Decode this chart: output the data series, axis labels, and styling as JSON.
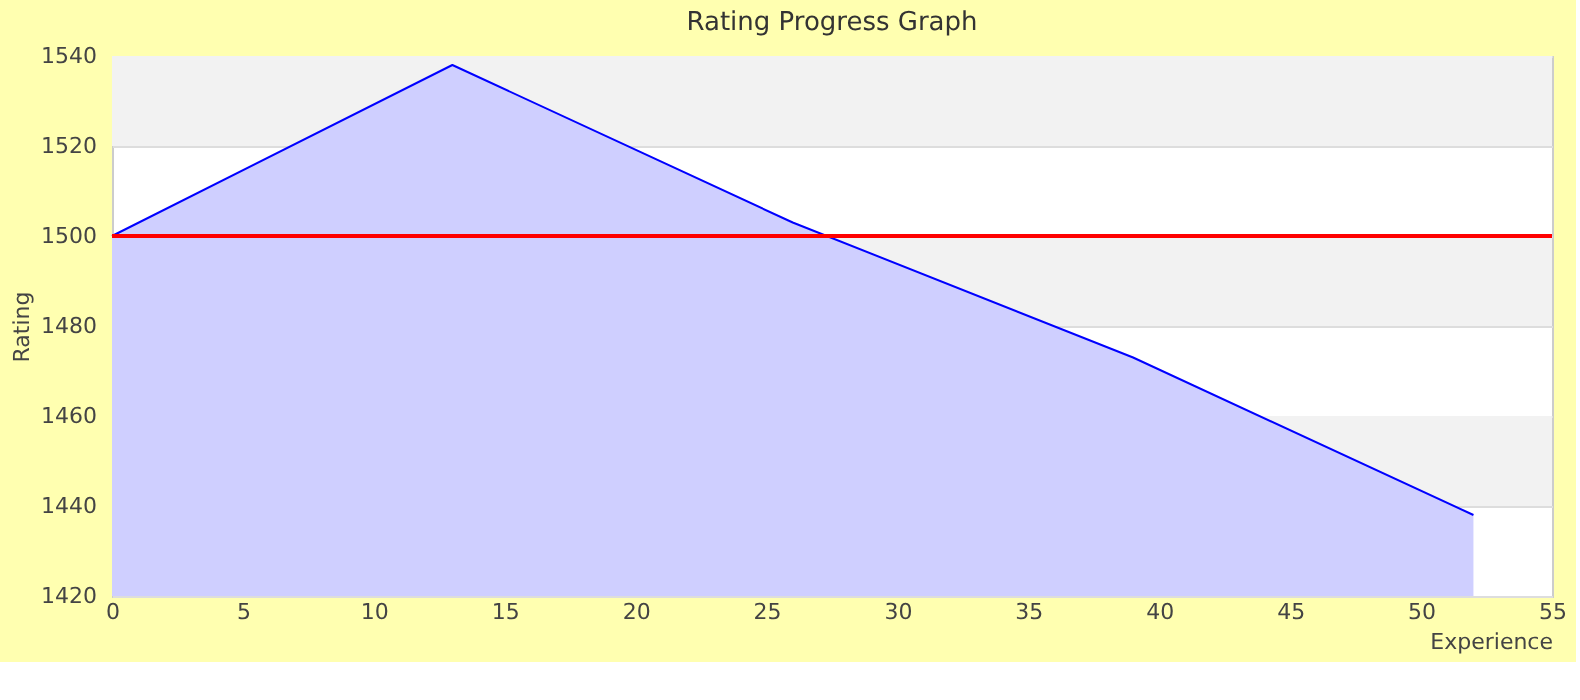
{
  "chart_data": {
    "type": "area",
    "title": "Rating Progress Graph",
    "xlabel": "Experience",
    "ylabel": "Rating",
    "x": [
      0,
      13,
      26,
      39,
      52
    ],
    "series": [
      {
        "color": "#0000ff",
        "values": [
          1500,
          1538,
          1503,
          1473,
          1438
        ]
      }
    ],
    "xlim": [
      0,
      55
    ],
    "xticks": [
      0,
      5,
      10,
      15,
      20,
      25,
      30,
      35,
      40,
      45,
      50,
      55
    ],
    "ylim": [
      1420,
      1540
    ],
    "yticks": [
      1420,
      1440,
      1460,
      1480,
      1500,
      1520,
      1540
    ],
    "grid": "y",
    "ref_lines": [
      {
        "axis": "y",
        "value": 1500,
        "color": "#ff0000"
      }
    ]
  }
}
